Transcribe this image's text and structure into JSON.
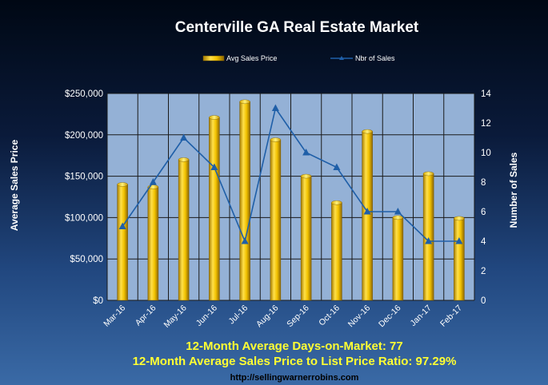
{
  "chart_data": {
    "type": "bar",
    "title": "Centerville GA Real Estate Market",
    "categories": [
      "Mar-16",
      "Apr-16",
      "May-16",
      "Jun-16",
      "Jul-16",
      "Aug-16",
      "Sep-16",
      "Oct-16",
      "Nov-16",
      "Dec-16",
      "Jan-17",
      "Feb-17"
    ],
    "series": [
      {
        "name": "Avg Sales Price",
        "type": "bar",
        "axis": "left",
        "values": [
          140000,
          137000,
          170000,
          221000,
          240000,
          194000,
          150000,
          118000,
          204000,
          100000,
          153000,
          99000
        ],
        "color": "#f2c200"
      },
      {
        "name": "Nbr of Sales",
        "type": "line",
        "axis": "right",
        "values": [
          5,
          8,
          11,
          9,
          4,
          13,
          10,
          9,
          6,
          6,
          4,
          4
        ],
        "color": "#1f5fa8"
      }
    ],
    "ylabel": "Average Sales Price",
    "ylabel_right": "Number of Sales",
    "ylim": [
      0,
      250000
    ],
    "ylim_right": [
      0,
      14
    ],
    "yticks": [
      "$0",
      "$50,000",
      "$100,000",
      "$150,000",
      "$200,000",
      "$250,000"
    ],
    "yticks_right": [
      "0",
      "2",
      "4",
      "6",
      "8",
      "10",
      "12",
      "14"
    ],
    "grid": true,
    "legend_position": "top-center"
  },
  "footer": {
    "line1": "12-Month Average Days-on-Market: 77",
    "line2": "12-Month Average Sales Price to List Price Ratio: 97.29%",
    "url": "http://sellingwarnerrobins.com"
  },
  "colors": {
    "plot_bg": "#94b1d6",
    "grid": "#1a1a1a",
    "bar_fill": "#f2c200",
    "line": "#1f5fa8",
    "footer_text": "#ffff33"
  }
}
